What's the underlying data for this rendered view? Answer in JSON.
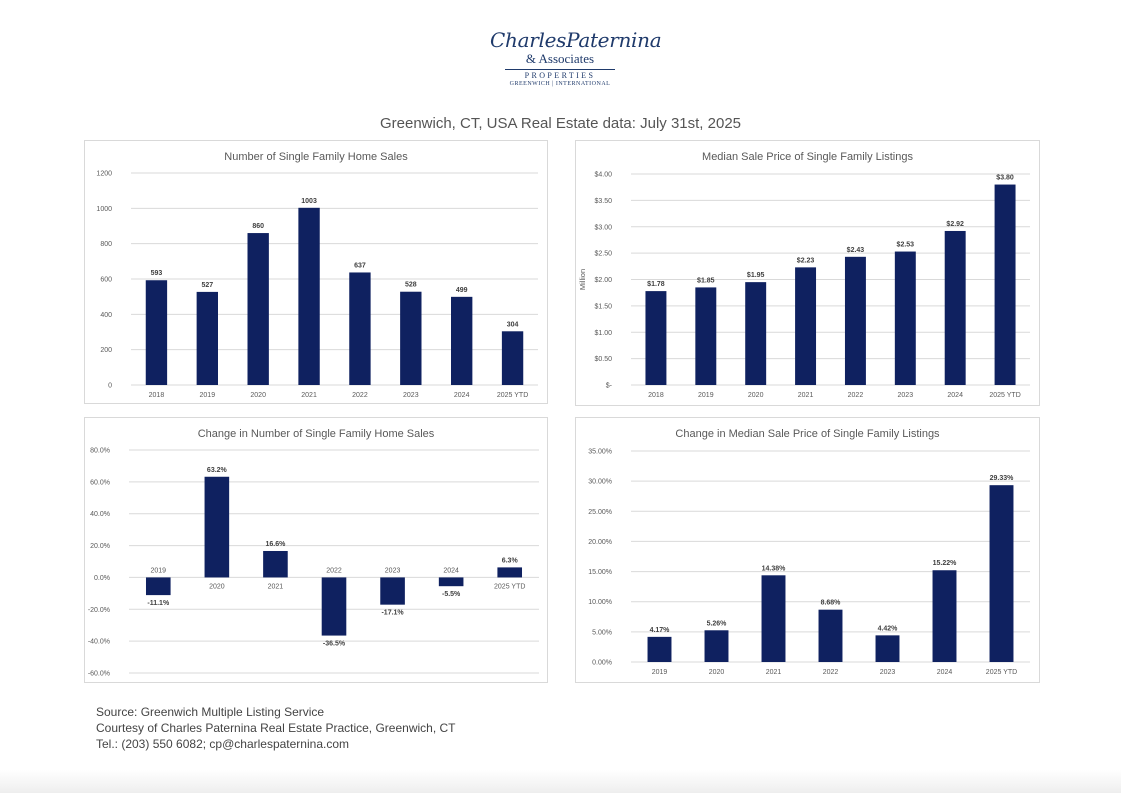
{
  "logo": {
    "name": "CharlesPaternina",
    "associates": "& Associates",
    "properties": "PROPERTIES",
    "location": "GREENWICH | INTERNATIONAL"
  },
  "page_title": "Greenwich, CT, USA Real Estate data: July 31st, 2025",
  "footer": {
    "source": "Source: Greenwich Multiple Listing Service",
    "courtesy": "Courtesy of Charles Paternina Real Estate Practice, Greenwich, CT",
    "contact": "Tel.: (203) 550 6082; cp@charlespaternina.com"
  },
  "colors": {
    "bar": "#0f2160",
    "grid": "#d9d9d9",
    "axis_text": "#595959"
  },
  "chart_data": [
    {
      "type": "bar",
      "title": "Number of Single Family Home Sales",
      "xlabel": "",
      "ylabel": "",
      "categories": [
        "2018",
        "2019",
        "2020",
        "2021",
        "2022",
        "2023",
        "2024",
        "2025 YTD"
      ],
      "values": [
        593,
        527,
        860,
        1003,
        637,
        528,
        499,
        304
      ],
      "data_labels": [
        "593",
        "527",
        "860",
        "1003",
        "637",
        "528",
        "499",
        "304"
      ],
      "ylim": [
        0,
        1200
      ],
      "yticks": [
        0,
        200,
        400,
        600,
        800,
        1000,
        1200
      ],
      "ytick_labels": [
        "0",
        "200",
        "400",
        "600",
        "800",
        "1000",
        "1200"
      ],
      "grid": true,
      "legend": "none"
    },
    {
      "type": "bar",
      "title": "Median Sale Price of Single Family Listings",
      "xlabel": "",
      "ylabel": "Million",
      "categories": [
        "2018",
        "2019",
        "2020",
        "2021",
        "2022",
        "2023",
        "2024",
        "2025 YTD"
      ],
      "values": [
        1.78,
        1.85,
        1.95,
        2.23,
        2.43,
        2.53,
        2.92,
        3.8
      ],
      "data_labels": [
        "$1.78",
        "$1.85",
        "$1.95",
        "$2.23",
        "$2.43",
        "$2.53",
        "$2.92",
        "$3.80"
      ],
      "ylim": [
        0,
        4
      ],
      "yticks": [
        0,
        0.5,
        1,
        1.5,
        2,
        2.5,
        3,
        3.5,
        4
      ],
      "ytick_labels": [
        "$-",
        "$0.50",
        "$1.00",
        "$1.50",
        "$2.00",
        "$2.50",
        "$3.00",
        "$3.50",
        "$4.00"
      ],
      "grid": true,
      "legend": "none"
    },
    {
      "type": "bar",
      "title": "Change in Number of Single Family Home Sales",
      "xlabel": "",
      "ylabel": "",
      "categories": [
        "2019",
        "2020",
        "2021",
        "2022",
        "2023",
        "2024",
        "2025 YTD"
      ],
      "values": [
        -11.1,
        63.2,
        16.6,
        -36.5,
        -17.1,
        -5.5,
        6.3
      ],
      "data_labels": [
        "-11.1%",
        "63.2%",
        "16.6%",
        "-36.5%",
        "-17.1%",
        "-5.5%",
        "6.3%"
      ],
      "ylim": [
        -60,
        80
      ],
      "yticks": [
        -60,
        -40,
        -20,
        0,
        20,
        40,
        60,
        80
      ],
      "ytick_labels": [
        "-60.0%",
        "-40.0%",
        "-20.0%",
        "0.0%",
        "20.0%",
        "40.0%",
        "60.0%",
        "80.0%"
      ],
      "category_labels_at_zero": true,
      "grid": true,
      "legend": "none"
    },
    {
      "type": "bar",
      "title": "Change in Median Sale Price of Single Family Listings",
      "xlabel": "",
      "ylabel": "",
      "categories": [
        "2019",
        "2020",
        "2021",
        "2022",
        "2023",
        "2024",
        "2025 YTD"
      ],
      "values": [
        4.17,
        5.26,
        14.38,
        8.68,
        4.42,
        15.22,
        29.33
      ],
      "data_labels": [
        "4.17%",
        "5.26%",
        "14.38%",
        "8.68%",
        "4.42%",
        "15.22%",
        "29.33%"
      ],
      "ylim": [
        0,
        35
      ],
      "yticks": [
        0,
        5,
        10,
        15,
        20,
        25,
        30,
        35
      ],
      "ytick_labels": [
        "0.00%",
        "5.00%",
        "10.00%",
        "15.00%",
        "20.00%",
        "25.00%",
        "30.00%",
        "35.00%"
      ],
      "grid": true,
      "legend": "none"
    }
  ]
}
